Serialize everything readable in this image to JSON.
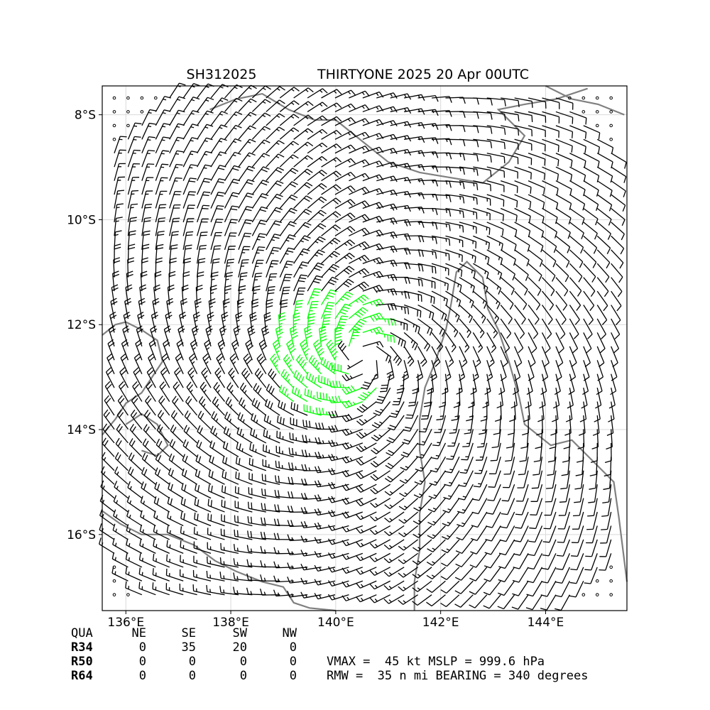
{
  "chart_data": {
    "type": "wind_barb_map",
    "title_left": "SH312025",
    "title_right": "THIRTYONE 2025 20 Apr 00UTC",
    "x_ticks": [
      "136°E",
      "138°E",
      "140°E",
      "142°E",
      "144°E"
    ],
    "x_tick_values": [
      136,
      138,
      140,
      142,
      144
    ],
    "y_ticks": [
      "8°S",
      "10°S",
      "12°S",
      "14°S",
      "16°S"
    ],
    "y_tick_values": [
      -8,
      -10,
      -12,
      -14,
      -16
    ],
    "xlim": [
      135.55,
      145.55
    ],
    "ylim": [
      -17.45,
      -7.45
    ],
    "grid": true,
    "center": {
      "lon": 140.5,
      "lat": -12.6
    },
    "gale_color": "#00ff00",
    "barb_color": "#000000",
    "coast_color": "#808080",
    "quadrant_table": {
      "headers": [
        "QUA",
        "NE",
        "SE",
        "SW",
        "NW"
      ],
      "rows": [
        {
          "label": "R34",
          "values": [
            "0",
            "35",
            "20",
            "0"
          ]
        },
        {
          "label": "R50",
          "values": [
            "0",
            "0",
            "0",
            "0"
          ]
        },
        {
          "label": "R64",
          "values": [
            "0",
            "0",
            "0",
            "0"
          ]
        }
      ]
    },
    "info_line1": "VMAX =  45 kt MSLP = 999.6 hPa",
    "info_line2": "RMW =  35 n mi BEARING = 340 degrees"
  }
}
